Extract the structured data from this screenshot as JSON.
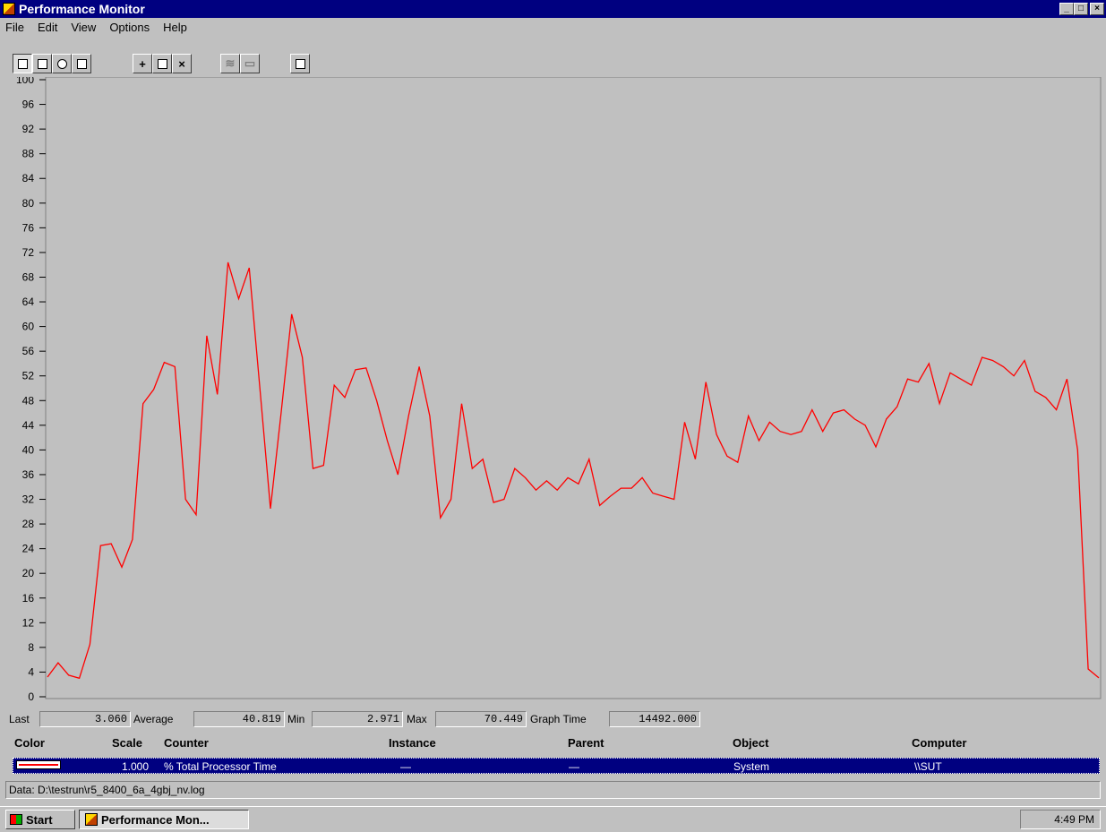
{
  "window": {
    "title": "Performance Monitor",
    "icon": "perfmon-icon",
    "controls": [
      "minimize-icon",
      "maximize-icon",
      "close-icon"
    ]
  },
  "menu": [
    "File",
    "Edit",
    "View",
    "Options",
    "Help"
  ],
  "toolbar": {
    "buttons": [
      {
        "name": "chart-view",
        "icon": "chart-icon",
        "pressed": true
      },
      {
        "name": "alert-view",
        "icon": "alert-icon",
        "pressed": false
      },
      {
        "name": "log-view",
        "icon": "log-icon",
        "pressed": false
      },
      {
        "name": "report-view",
        "icon": "report-icon",
        "pressed": false
      },
      {
        "name": "add-counter",
        "icon": "plus-icon",
        "glyph": "+",
        "pressed": false
      },
      {
        "name": "edit-counter",
        "icon": "edit-icon",
        "pressed": false
      },
      {
        "name": "delete-counter",
        "icon": "delete-icon",
        "glyph": "×",
        "pressed": false
      },
      {
        "name": "update-now",
        "icon": "update-icon",
        "disabled": true
      },
      {
        "name": "bookmark",
        "icon": "bookmark-icon",
        "disabled": true
      },
      {
        "name": "options",
        "icon": "options-icon",
        "pressed": false
      }
    ]
  },
  "chart_data": {
    "type": "line",
    "title": "",
    "xlabel": "",
    "ylabel": "",
    "ylim": [
      0,
      100
    ],
    "yticks": [
      0,
      4,
      8,
      12,
      16,
      20,
      24,
      28,
      32,
      36,
      40,
      44,
      48,
      52,
      56,
      60,
      64,
      68,
      72,
      76,
      80,
      84,
      88,
      92,
      96,
      100
    ],
    "grid": false,
    "series": [
      {
        "name": "% Total Processor Time",
        "color": "#ff0000",
        "values": [
          3.2,
          5.5,
          3.5,
          3.0,
          8.5,
          24.5,
          24.8,
          21.0,
          25.5,
          47.5,
          49.8,
          54.2,
          53.5,
          32.0,
          29.5,
          58.5,
          49.0,
          70.4,
          64.5,
          69.5,
          50.0,
          30.5,
          46.0,
          62.0,
          55.0,
          37.0,
          37.5,
          50.5,
          48.5,
          53.0,
          53.3,
          48.0,
          41.5,
          36.0,
          45.5,
          53.5,
          45.5,
          29.0,
          32.0,
          47.5,
          37.0,
          38.5,
          31.5,
          32.0,
          37.0,
          35.5,
          33.5,
          35.0,
          33.5,
          35.5,
          34.5,
          38.5,
          31.0,
          32.5,
          33.8,
          33.8,
          35.5,
          33.0,
          32.5,
          32.0,
          44.5,
          38.5,
          51.0,
          42.5,
          39.0,
          38.0,
          45.5,
          41.5,
          44.5,
          43.0,
          42.5,
          43.0,
          46.5,
          43.0,
          46.0,
          46.5,
          45.0,
          44.0,
          40.5,
          45.0,
          47.0,
          51.5,
          51.0,
          54.0,
          47.5,
          52.5,
          51.5,
          50.5,
          55.0,
          54.5,
          53.5,
          52.0,
          54.5,
          49.5,
          48.5,
          46.5,
          51.5,
          40.0,
          4.5,
          3.06
        ]
      }
    ]
  },
  "stats": {
    "last_label": "Last",
    "last_value": "3.060",
    "average_label": "Average",
    "average_value": "40.819",
    "min_label": "Min",
    "min_value": "2.971",
    "max_label": "Max",
    "max_value": "70.449",
    "graph_time_label": "Graph Time",
    "graph_time_value": "14492.000"
  },
  "legend": {
    "headers": {
      "color": "Color",
      "scale": "Scale",
      "counter": "Counter",
      "instance": "Instance",
      "parent": "Parent",
      "object": "Object",
      "computer": "Computer"
    },
    "rows": [
      {
        "color": "#ff0000",
        "scale": "1.000",
        "counter": "% Total Processor Time",
        "instance": "—",
        "parent": "—",
        "object": "System",
        "computer": "\\\\SUT"
      }
    ]
  },
  "status": {
    "data_file": "Data: D:\\testrun\\r5_8400_6a_4gbj_nv.log"
  },
  "taskbar": {
    "start_label": "Start",
    "task_label": "Performance Mon...",
    "clock": "4:49 PM"
  }
}
